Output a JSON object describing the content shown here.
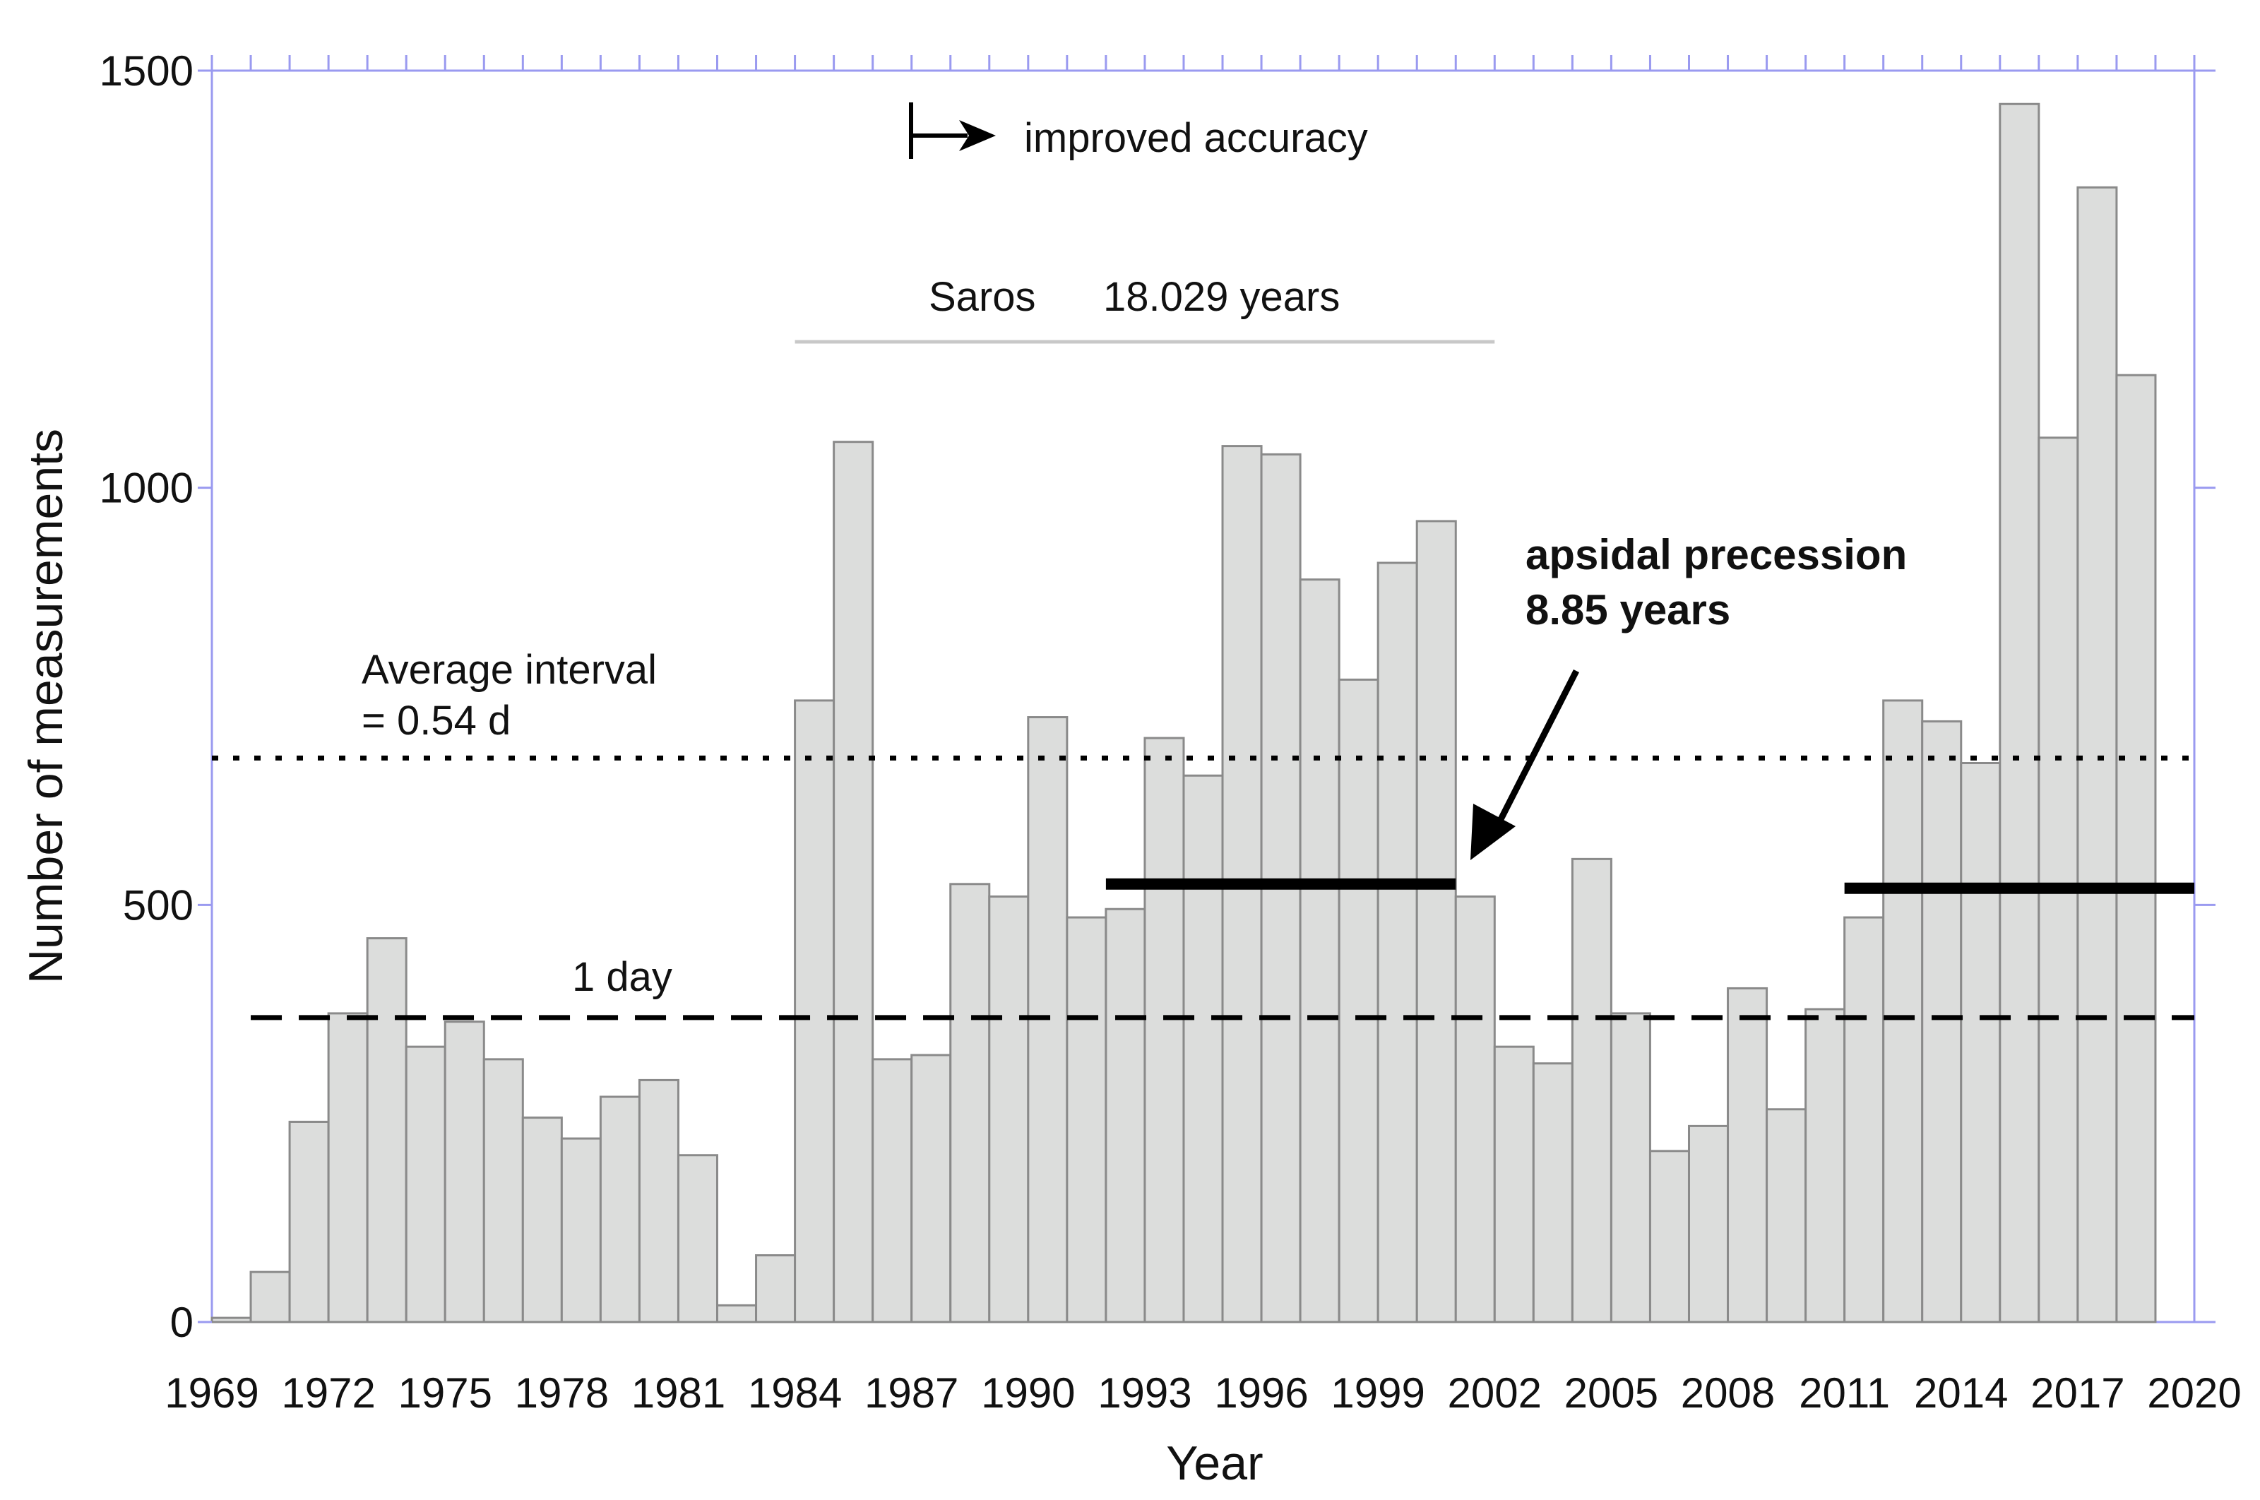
{
  "chart_data": {
    "type": "bar",
    "xlabel": "Year",
    "ylabel": "Number of measurements",
    "ylim": [
      0,
      1500
    ],
    "yticks": [
      0,
      500,
      1000,
      1500
    ],
    "xlim": [
      1969,
      2020
    ],
    "xtick_labels": [
      "1969",
      "1972",
      "1975",
      "1978",
      "1981",
      "1984",
      "1987",
      "1990",
      "1993",
      "1996",
      "1999",
      "2002",
      "2005",
      "2008",
      "2011",
      "2014",
      "2017",
      "2020"
    ],
    "years": [
      1969,
      1970,
      1971,
      1972,
      1973,
      1974,
      1975,
      1976,
      1977,
      1978,
      1979,
      1980,
      1981,
      1982,
      1983,
      1984,
      1985,
      1986,
      1987,
      1988,
      1989,
      1990,
      1991,
      1992,
      1993,
      1994,
      1995,
      1996,
      1997,
      1998,
      1999,
      2000,
      2001,
      2002,
      2003,
      2004,
      2005,
      2006,
      2007,
      2008,
      2009,
      2010,
      2011,
      2012,
      2013,
      2014,
      2015,
      2016,
      2017,
      2018
    ],
    "values": [
      5,
      60,
      240,
      370,
      460,
      330,
      360,
      315,
      245,
      220,
      270,
      290,
      200,
      20,
      80,
      745,
      1055,
      315,
      320,
      525,
      510,
      725,
      485,
      495,
      700,
      655,
      1050,
      1040,
      890,
      770,
      910,
      960,
      510,
      330,
      310,
      555,
      370,
      205,
      235,
      400,
      255,
      375,
      485,
      745,
      720,
      670,
      1460,
      1060,
      1360,
      1135
    ],
    "reference_lines": [
      {
        "name": "Average interval",
        "label_lines": [
          "Average interval",
          "= 0.54 d"
        ],
        "value": 676,
        "style": "dotted"
      },
      {
        "name": "1 day",
        "label": "1 day",
        "value": 365,
        "style": "dashed"
      }
    ],
    "annotations": {
      "improved_accuracy": "improved accuracy",
      "saros_label": "Saros",
      "saros_period": "18.029 years",
      "saros_span": [
        1984,
        2002
      ],
      "apsidal_line1": "apsidal precession",
      "apsidal_line2": "8.85 years",
      "apsidal_segments": [
        {
          "from": 1992,
          "to": 2001,
          "y": 525
        },
        {
          "from": 2011,
          "to": 2020,
          "y": 520
        }
      ]
    }
  }
}
